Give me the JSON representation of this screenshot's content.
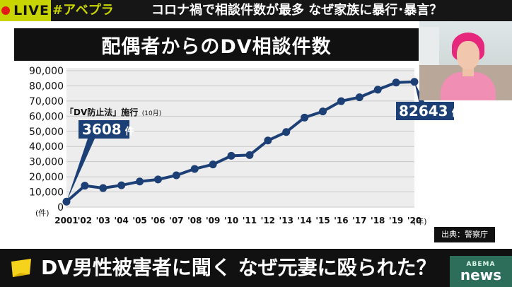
{
  "topbar": {
    "live": "LIVE",
    "hashtag": "#アベプラ",
    "headline": "コロナ禍で相談件数が最多 なぜ家族に暴行･暴言？"
  },
  "chart_data": {
    "type": "line",
    "title": "配偶者からのDV相談件数",
    "ylabel_unit": "(件)",
    "xlabel_unit": "(年)",
    "ylim": [
      0,
      90000
    ],
    "y_ticks": [
      "0",
      "10,000",
      "20,000",
      "30,000",
      "40,000",
      "50,000",
      "60,000",
      "70,000",
      "80,000",
      "90,000"
    ],
    "x_labels": [
      "2001",
      "'02",
      "'03",
      "'04",
      "'05",
      "'06",
      "'07",
      "'08",
      "'09",
      "'10",
      "'11",
      "'12",
      "'13",
      "'14",
      "'15",
      "'16",
      "'17",
      "'18",
      "'19",
      "'20"
    ],
    "series": [
      {
        "values": [
          3608,
          14140,
          12568,
          14410,
          16888,
          18236,
          20992,
          25210,
          28158,
          33852,
          34329,
          43950,
          49533,
          59072,
          63141,
          69908,
          72455,
          77482,
          82207,
          82643
        ]
      }
    ],
    "grid": true,
    "colors": {
      "line": "#1c3f75",
      "point": "#1c3f75"
    },
    "annotations": {
      "law_note": "「DV防止法」施行",
      "law_note_month": "(10月)",
      "first_value": "3608",
      "first_unit": "件",
      "last_value": "82643",
      "last_unit": "件"
    },
    "source": "出典：警察庁"
  },
  "bottombar": {
    "caption": "DV男性被害者に聞く なぜ元妻に殴られた？",
    "logo_top": "ABEMA",
    "logo_bottom": "news"
  }
}
